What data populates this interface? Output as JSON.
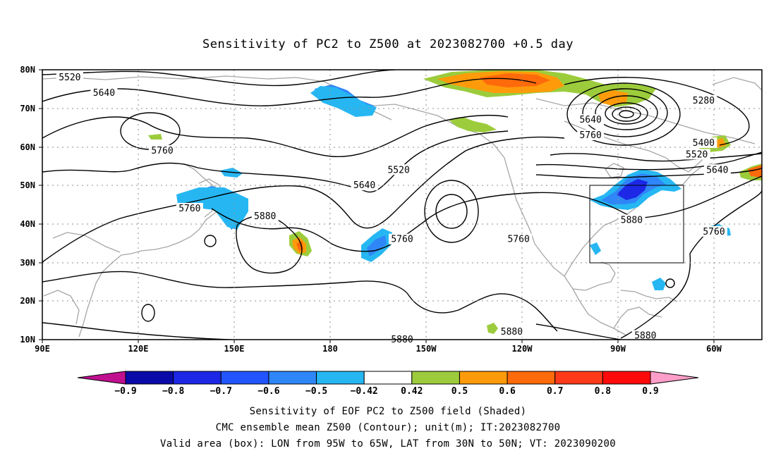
{
  "title": "Sensitivity of PC2 to Z500 at 2023082700 +0.5 day",
  "lat_labels": [
    "80N",
    "70N",
    "60N",
    "50N",
    "40N",
    "30N",
    "20N",
    "10N"
  ],
  "lon_labels": [
    "90E",
    "120E",
    "150E",
    "180",
    "150W",
    "120W",
    "90W",
    "60W"
  ],
  "colorbar": {
    "labels": [
      "-0.9",
      "-0.8",
      "-0.7",
      "-0.6",
      "-0.5",
      "-0.42",
      "0.42",
      "0.5",
      "0.6",
      "0.7",
      "0.8",
      "0.9"
    ],
    "colors": [
      "#c01090",
      "#0a0aa8",
      "#1c28e6",
      "#2255ff",
      "#2f86f7",
      "#26b7f3",
      "#ffffff",
      "#9ccc3c",
      "#ff9b0a",
      "#ff6a0a",
      "#ff3a1a",
      "#ff0a0a",
      "#ff9ec8"
    ]
  },
  "contour_labels": [
    {
      "text": "5520",
      "lon": 98,
      "lat": 78
    },
    {
      "text": "5640",
      "lon": 108,
      "lat": 74
    },
    {
      "text": "5760",
      "lon": 125,
      "lat": 59
    },
    {
      "text": "5760",
      "lon": 133,
      "lat": 44
    },
    {
      "text": "5880",
      "lon": 155,
      "lat": 42
    },
    {
      "text": "5640",
      "lon": 184,
      "lat": 50
    },
    {
      "text": "5520",
      "lon": 194,
      "lat": 54
    },
    {
      "text": "5760",
      "lon": 195,
      "lat": 36
    },
    {
      "text": "5760",
      "lon": 229,
      "lat": 36
    },
    {
      "text": "5640",
      "lon": 250,
      "lat": 67
    },
    {
      "text": "5760",
      "lon": 250,
      "lat": 63
    },
    {
      "text": "5880",
      "lon": 262,
      "lat": 41
    },
    {
      "text": "5880",
      "lon": 227,
      "lat": 12
    },
    {
      "text": "5880",
      "lon": 195,
      "lat": 10
    },
    {
      "text": "5880",
      "lon": 266,
      "lat": 11
    },
    {
      "text": "5280",
      "lon": 283,
      "lat": 72
    },
    {
      "text": "5400",
      "lon": 283,
      "lat": 61
    },
    {
      "text": "5520",
      "lon": 281,
      "lat": 58
    },
    {
      "text": "5640",
      "lon": 287,
      "lat": 54
    },
    {
      "text": "5760",
      "lon": 286,
      "lat": 38
    }
  ],
  "footer": [
    "Sensitivity of EOF PC2 to Z500 field (Shaded)",
    "CMC ensemble mean Z500 (Contour); unit(m); IT:2023082700",
    "Valid area (box): LON from 95W to 65W, LAT from 30N to 50N; VT: 2023090200"
  ]
}
